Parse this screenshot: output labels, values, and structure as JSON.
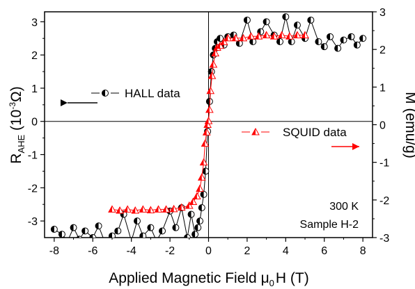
{
  "chart_data": {
    "type": "scatter",
    "xlabel_prefix": "Applied Magnetic Field  ",
    "xlabel_sym": "μ",
    "xlabel_sub": "0",
    "xlabel_suffix": "H (T)",
    "ylabel_left": {
      "main": "R",
      "sub": "AHE",
      "mid": " (10",
      "sup": "-3",
      "end": "Ω)"
    },
    "ylabel_right": "M (emu/g)",
    "xlim": [
      -8.5,
      8.5
    ],
    "ylim_left": [
      -3.5,
      3.3
    ],
    "ylim_right": [
      -3,
      3
    ],
    "xticks": [
      -8,
      -6,
      -4,
      -2,
      0,
      2,
      4,
      6,
      8
    ],
    "xtick_labels": [
      "-8",
      "-6",
      "-4",
      "-2",
      "0",
      "2",
      "4",
      "6",
      "8"
    ],
    "yticks_left": [
      -3,
      -2,
      -1,
      0,
      1,
      2,
      3
    ],
    "ytick_labels_left": [
      "-3",
      "-2",
      "-1",
      "0",
      "1",
      "2",
      "3"
    ],
    "yticks_right": [
      -3,
      -2,
      -1,
      0,
      1,
      2,
      3
    ],
    "ytick_labels_right": [
      "-3",
      "-2",
      "-1",
      "0",
      "1",
      "2",
      "3"
    ],
    "series": [
      {
        "name": "HALL data",
        "axis": "left",
        "color": "#000000",
        "marker": "half-filled-circle",
        "x": [
          -8.0,
          -7.6,
          -7.3,
          -7.0,
          -6.7,
          -6.4,
          -6.0,
          -5.7,
          -5.4,
          -5.0,
          -4.7,
          -4.4,
          -4.0,
          -3.7,
          -3.4,
          -3.0,
          -2.7,
          -2.4,
          -2.0,
          -1.7,
          -1.4,
          -1.1,
          -0.9,
          -0.7,
          -0.55,
          -0.45,
          -0.35,
          -0.25,
          -0.15,
          -0.05,
          0.05,
          0.15,
          0.25,
          0.35,
          0.45,
          0.6,
          0.8,
          1.0,
          1.3,
          1.6,
          2.0,
          2.3,
          2.7,
          3.0,
          3.4,
          3.7,
          4.0,
          4.3,
          4.6,
          5.0,
          5.3,
          5.7,
          6.0,
          6.3,
          6.7,
          7.0,
          7.4,
          7.7,
          8.0
        ],
        "y": [
          -3.25,
          -3.4,
          -3.6,
          -3.2,
          -3.55,
          -3.3,
          -3.5,
          -3.15,
          -3.6,
          -3.45,
          -3.3,
          -2.8,
          -3.6,
          -3.0,
          -3.45,
          -3.2,
          -3.6,
          -3.3,
          -2.7,
          -3.2,
          -2.6,
          -3.5,
          -2.8,
          -3.4,
          -3.2,
          -3.0,
          -2.6,
          -2.2,
          -1.5,
          -0.3,
          0.6,
          1.5,
          2.0,
          2.2,
          2.4,
          2.5,
          2.3,
          2.55,
          2.6,
          2.35,
          3.05,
          2.4,
          2.7,
          3.0,
          2.6,
          2.4,
          3.15,
          2.4,
          2.9,
          2.5,
          3.05,
          2.4,
          2.25,
          2.55,
          2.2,
          2.45,
          2.55,
          2.3,
          2.5
        ]
      },
      {
        "name": "SQUID data",
        "axis": "right",
        "color": "#ff0000",
        "marker": "half-filled-triangle",
        "x": [
          -5.0,
          -4.6,
          -4.2,
          -3.8,
          -3.4,
          -3.0,
          -2.6,
          -2.2,
          -1.8,
          -1.4,
          -1.0,
          -0.8,
          -0.6,
          -0.45,
          -0.35,
          -0.25,
          -0.18,
          -0.1,
          -0.05,
          0.0,
          0.05,
          0.1,
          0.18,
          0.25,
          0.35,
          0.45,
          0.6,
          0.8,
          1.0,
          1.4,
          1.8,
          2.2,
          2.6,
          3.0,
          3.4,
          3.8,
          4.2,
          4.6,
          5.0
        ],
        "y": [
          -2.25,
          -2.28,
          -2.25,
          -2.28,
          -2.25,
          -2.27,
          -2.25,
          -2.25,
          -2.24,
          -2.2,
          -2.15,
          -2.05,
          -1.9,
          -1.7,
          -1.4,
          -1.0,
          -0.5,
          -0.2,
          0.0,
          0.1,
          0.4,
          0.9,
          1.3,
          1.6,
          1.9,
          2.05,
          2.1,
          2.2,
          2.3,
          2.3,
          2.3,
          2.35,
          2.35,
          2.38,
          2.35,
          2.38,
          2.35,
          2.38,
          2.38
        ]
      }
    ],
    "legend": {
      "hall_label": "HALL data",
      "squid_label": "SQUID data"
    },
    "annotations": [
      "300 K",
      "Sample H-2"
    ],
    "reference_lines": {
      "x": 0,
      "y": 0
    },
    "grid": false
  }
}
